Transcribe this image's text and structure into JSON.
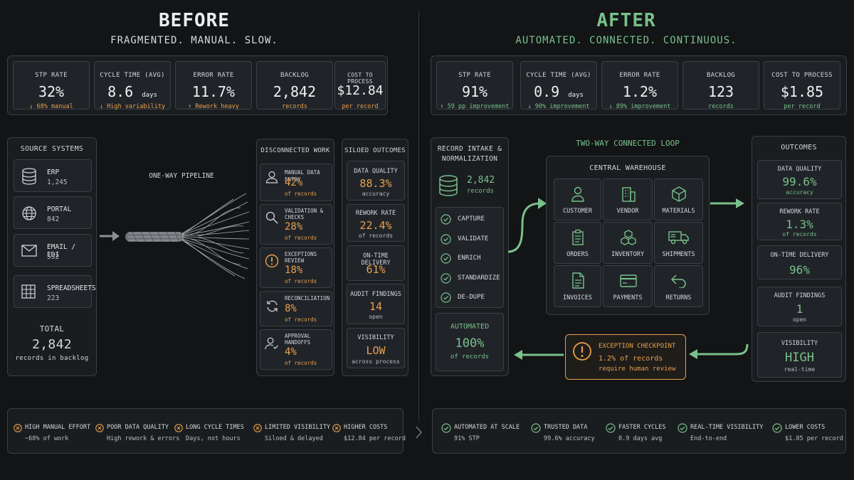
{
  "before": {
    "title": "BEFORE",
    "subtitle": "FRAGMENTED. MANUAL. SLOW.",
    "kpis": [
      {
        "label": "STP RATE",
        "value": "32%",
        "unit": "",
        "note": "↓ 68% manual"
      },
      {
        "label": "CYCLE TIME (AVG)",
        "value": "8.6",
        "unit": "days",
        "note": "↓ High variability"
      },
      {
        "label": "ERROR RATE",
        "value": "11.7%",
        "unit": "",
        "note": "↑ Rework heavy"
      },
      {
        "label": "BACKLOG",
        "value": "2,842",
        "unit": "",
        "note": "records"
      },
      {
        "label": "COST TO PROCESS",
        "value": "$12.84",
        "unit": "",
        "note": "per record"
      }
    ],
    "sources": {
      "title": "SOURCE SYSTEMS",
      "items": [
        {
          "label": "ERP",
          "count": "1,245"
        },
        {
          "label": "PORTAL",
          "count": "842"
        },
        {
          "label": "EMAIL / EDI",
          "count": "532"
        },
        {
          "label": "SPREADSHEETS",
          "count": "223"
        }
      ],
      "total_label": "TOTAL",
      "total_value": "2,842",
      "total_note": "records in backlog"
    },
    "pipeline_label": "ONE-WAY PIPELINE",
    "work": {
      "title": "DISCONNECTED WORK",
      "items": [
        {
          "label1": "MANUAL DATA ENTRY",
          "label2": "",
          "pct": "42%",
          "sub": "of records"
        },
        {
          "label1": "VALIDATION &",
          "label2": "CHECKS",
          "pct": "28%",
          "sub": "of records"
        },
        {
          "label1": "EXCEPTIONS",
          "label2": "REVIEW",
          "pct": "18%",
          "sub": "of records"
        },
        {
          "label1": "RECONCILIATION",
          "label2": "",
          "pct": "8%",
          "sub": "of records"
        },
        {
          "label1": "APPROVAL",
          "label2": "HANDOFFS",
          "pct": "4%",
          "sub": "of records"
        }
      ]
    },
    "outcomes": {
      "title": "SILOED OUTCOMES",
      "items": [
        {
          "label": "DATA QUALITY",
          "value": "88.3%",
          "sub": "accuracy"
        },
        {
          "label": "REWORK RATE",
          "value": "22.4%",
          "sub": "of records"
        },
        {
          "label": "ON-TIME DELIVERY",
          "value": "61%",
          "sub": ""
        },
        {
          "label": "AUDIT FINDINGS",
          "value": "14",
          "sub": "open"
        },
        {
          "label": "VISIBILITY",
          "value": "LOW",
          "sub": "across process"
        }
      ]
    },
    "footer": [
      {
        "title": "HIGH MANUAL EFFORT",
        "sub": "~68% of work"
      },
      {
        "title": "POOR DATA QUALITY",
        "sub": "High rework & errors"
      },
      {
        "title": "LONG CYCLE TIMES",
        "sub": "Days, not hours"
      },
      {
        "title": "LIMITED VISIBILITY",
        "sub": "Siloed & delayed"
      },
      {
        "title": "HIGHER COSTS",
        "sub": "$12.84 per record"
      }
    ]
  },
  "after": {
    "title": "AFTER",
    "subtitle": "AUTOMATED. CONNECTED. CONTINUOUS.",
    "kpis": [
      {
        "label": "STP RATE",
        "value": "91%",
        "unit": "",
        "note": "↑ 59 pp improvement"
      },
      {
        "label": "CYCLE TIME (AVG)",
        "value": "0.9",
        "unit": "days",
        "note": "↓ 90% improvement"
      },
      {
        "label": "ERROR RATE",
        "value": "1.2%",
        "unit": "",
        "note": "↓ 89% improvement"
      },
      {
        "label": "BACKLOG",
        "value": "123",
        "unit": "",
        "note": "records"
      },
      {
        "label": "COST TO PROCESS",
        "value": "$1.85",
        "unit": "",
        "note": "per record"
      }
    ],
    "intake": {
      "title1": "RECORD INTAKE &",
      "title2": "NORMALIZATION",
      "count": "2,842",
      "count_sub": "records",
      "steps": [
        "CAPTURE",
        "VALIDATE",
        "ENRICH",
        "STANDARDIZE",
        "DE-DUPE"
      ],
      "automated_label": "AUTOMATED",
      "automated_value": "100%",
      "automated_sub": "of records"
    },
    "loop_label": "TWO-WAY CONNECTED LOOP",
    "warehouse": {
      "title": "CENTRAL WAREHOUSE",
      "cells": [
        "CUSTOMER",
        "VENDOR",
        "MATERIALS",
        "ORDERS",
        "INVENTORY",
        "SHIPMENTS",
        "INVOICES",
        "PAYMENTS",
        "RETURNS"
      ]
    },
    "exception": {
      "title": "EXCEPTION CHECKPOINT",
      "line1": "1.2% of records",
      "line2": "require human review"
    },
    "outcomes": {
      "title": "OUTCOMES",
      "items": [
        {
          "label": "DATA QUALITY",
          "value": "99.6%",
          "sub": "accuracy"
        },
        {
          "label": "REWORK RATE",
          "value": "1.3%",
          "sub": "of records"
        },
        {
          "label": "ON-TIME DELIVERY",
          "value": "96%",
          "sub": ""
        },
        {
          "label": "AUDIT FINDINGS",
          "value": "1",
          "sub": "open"
        },
        {
          "label": "VISIBILITY",
          "value": "HIGH",
          "sub": "real-time"
        }
      ]
    },
    "footer": [
      {
        "title": "AUTOMATED AT SCALE",
        "sub": "91% STP"
      },
      {
        "title": "TRUSTED DATA",
        "sub": "99.6% accuracy"
      },
      {
        "title": "FASTER CYCLES",
        "sub": "0.9 days avg"
      },
      {
        "title": "REAL-TIME VISIBILITY",
        "sub": "End-to-end"
      },
      {
        "title": "LOWER COSTS",
        "sub": "$1.85 per record"
      }
    ]
  },
  "colors": {
    "before_accent": "#e8a04e",
    "after_accent": "#79c08a",
    "background": "#121416"
  }
}
